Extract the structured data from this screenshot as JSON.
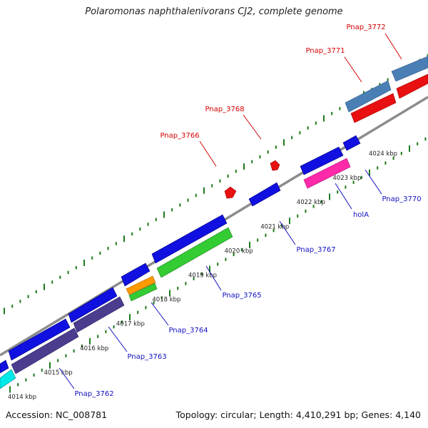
{
  "title": "Polaromonas naphthalenivorans CJ2, complete genome",
  "footer": {
    "accession": "Accession: NC_008781",
    "summary": "Topology: circular; Length: 4,410,291 bp; Genes: 4,140"
  },
  "colors": {
    "backbone": "#888888",
    "tick": "#1e7a1e",
    "label_top": "#d40000",
    "label_bottom": "#1010c0",
    "kbp_text": "#222222"
  },
  "kbp_marks": [
    {
      "label": "4014 kbp"
    },
    {
      "label": "4015 kbp"
    },
    {
      "label": "4016 kbp"
    },
    {
      "label": "4017 kbp"
    },
    {
      "label": "4018 kbp"
    },
    {
      "label": "4019 kbp"
    },
    {
      "label": "4020 kbp"
    },
    {
      "label": "4021 kbp"
    },
    {
      "label": "4022 kbp"
    },
    {
      "label": "4023 kbp"
    },
    {
      "label": "4024 kbp"
    }
  ],
  "labels_top": [
    {
      "text": "Pnap_3766"
    },
    {
      "text": "Pnap_3768"
    },
    {
      "text": "Pnap_3771"
    },
    {
      "text": "Pnap_3772"
    }
  ],
  "labels_bottom": [
    {
      "text": "Pnap_3762"
    },
    {
      "text": "Pnap_3763"
    },
    {
      "text": "Pnap_3764"
    },
    {
      "text": "Pnap_3765"
    },
    {
      "text": "Pnap_3767"
    },
    {
      "text": "holA"
    },
    {
      "text": "Pnap_3770"
    }
  ]
}
